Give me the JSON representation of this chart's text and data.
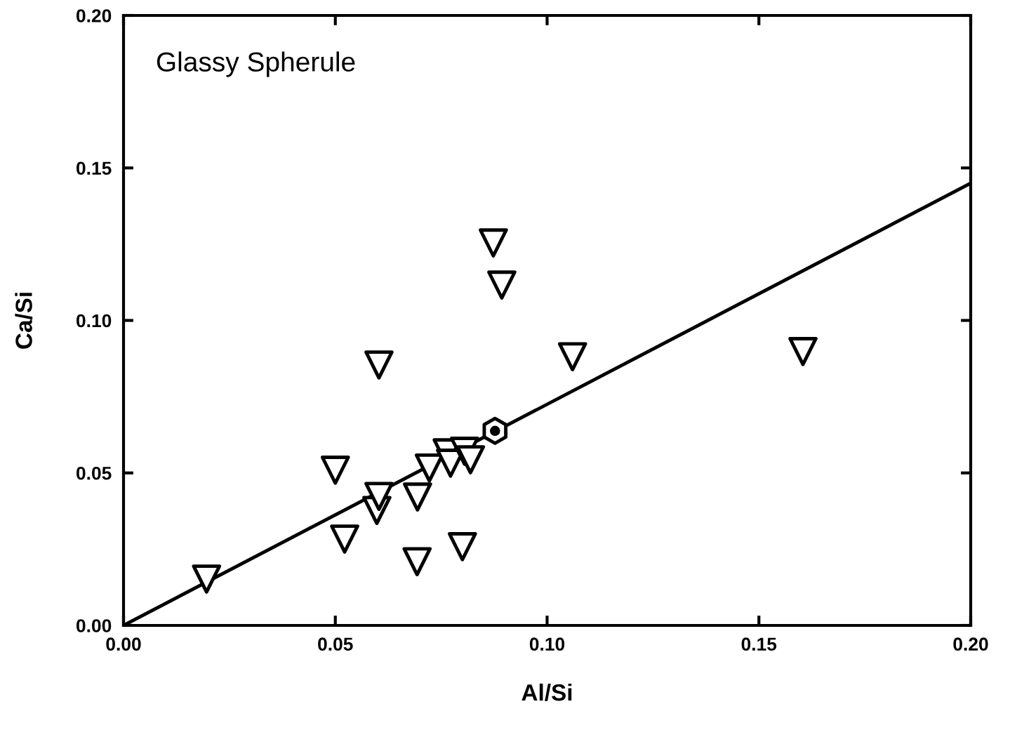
{
  "chart_data": {
    "type": "scatter",
    "xlabel": "Al/Si",
    "ylabel": "Ca/Si",
    "annotations": [
      "Glassy Spherule"
    ],
    "xlim": [
      0,
      0.2
    ],
    "ylim": [
      0,
      0.2
    ],
    "xticks": [
      {
        "value": 0,
        "label": "0.00"
      },
      0.05,
      {
        "value": 0.1,
        "label": "0.10"
      },
      0.15,
      {
        "value": 0.2,
        "label": "0.20"
      }
    ],
    "yticks": [
      {
        "value": 0,
        "label": "0.00"
      },
      0.05,
      {
        "value": 0.1,
        "label": "0.10"
      },
      0.15,
      {
        "value": 0.2,
        "label": "0.20"
      }
    ],
    "grid": false,
    "series": [
      {
        "type": "line",
        "color": "#000000",
        "marker": "none",
        "line_style": "solid",
        "x": [
          0,
          0.2
        ],
        "values": [
          0,
          0.145
        ]
      },
      {
        "color": "#000000",
        "marker": "triangle",
        "x": [
          0.0196,
          0.05,
          0.0522,
          0.0603,
          0.0598,
          0.0603,
          0.0694,
          0.0693,
          0.0722,
          0.0764,
          0.0772,
          0.0805,
          0.0819,
          0.08,
          0.0873,
          0.0893,
          0.106,
          0.1604
        ],
        "values": [
          0.0152,
          0.0509,
          0.0283,
          0.0854,
          0.0377,
          0.0423,
          0.0421,
          0.0209,
          0.0516,
          0.0566,
          0.0532,
          0.0571,
          0.0543,
          0.0258,
          0.1254,
          0.1116,
          0.0881,
          0.0898
        ]
      },
      {
        "color": "#000000",
        "x": [
          0.0877
        ],
        "values": [
          0.0638
        ]
      }
    ]
  }
}
